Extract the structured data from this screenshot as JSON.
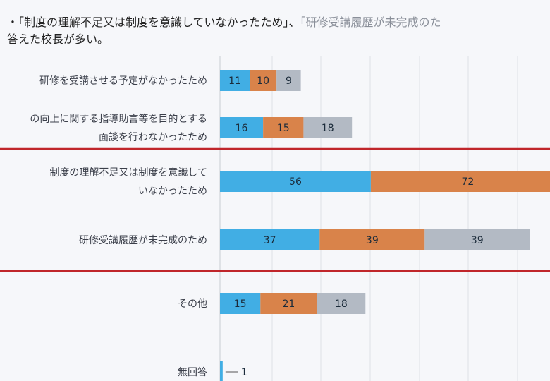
{
  "header": {
    "line1_main": "・「制度の理解不足又は制度を意識していなかったため」、",
    "line1_faint": "「研修受講履歴が未完成のた",
    "line2": "答えた校長が多い。"
  },
  "chart_data": {
    "type": "bar",
    "orientation": "horizontal",
    "stacked": true,
    "categories": [
      [
        "研修を受講させる予定がなかったため"
      ],
      [
        "の向上に関する指導助言等を目的とする",
        "面談を行わなかったため"
      ],
      [
        "制度の理解不足又は制度を意識して",
        "いなかったため"
      ],
      [
        "研修受講履歴が未完成のため"
      ],
      [
        "その他"
      ],
      [
        "無回答"
      ]
    ],
    "series": [
      {
        "color": "#41aee4",
        "values": [
          11,
          16,
          56,
          37,
          15,
          1
        ]
      },
      {
        "color": "#d9834a",
        "values": [
          10,
          15,
          72,
          39,
          21,
          0
        ]
      },
      {
        "color": "#b3bac4",
        "values": [
          9,
          18,
          null,
          39,
          18,
          0
        ]
      }
    ],
    "grid": true,
    "highlighted_categories": [
      2,
      3
    ],
    "highlight_color": "#c0262b"
  }
}
